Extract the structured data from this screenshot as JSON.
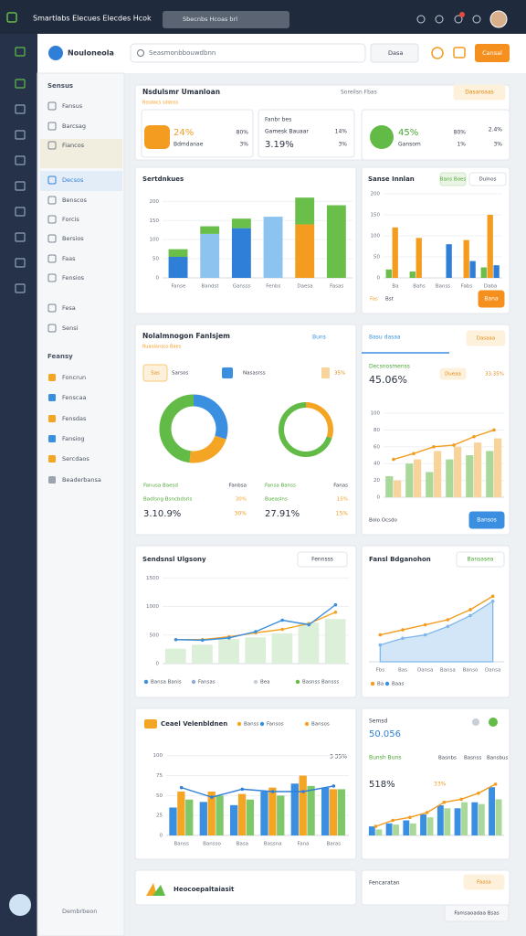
{
  "topbar": {
    "title": "Smartlabs Elecues Elecdes Hcok",
    "search": "Sbecnbs Hcoas brl"
  },
  "header": {
    "brand": "Nouloneola",
    "search": "Seasmonbbouwdbnn",
    "select": "Dasa",
    "button": "Cansal"
  },
  "sidebar": {
    "sections": [
      {
        "title": "Sensus",
        "items": [
          "Fansus",
          "Barcsag",
          "Fiancos",
          "Decsos",
          "Benscos",
          "Forcis",
          "Bersios",
          "Faas",
          "Fensios",
          "Fesa",
          "Sensi"
        ]
      },
      {
        "title": "Feansy",
        "items": [
          "Foncrun",
          "Fenscaa",
          "Fensdas",
          "Fansiog",
          "Sercdaos",
          "Beaderbansa"
        ]
      }
    ],
    "footer": "Dembrbeon"
  },
  "overview": {
    "title": "Nsdulsmr Umanloan",
    "subtitle": "Rssdacs sddnss",
    "link": "Soreilsn Fbas",
    "button": "Dasaroaas",
    "cards": [
      {
        "value": "24%",
        "label": "Bdmdanae",
        "side": [
          "80%",
          "3%"
        ]
      },
      {
        "top": "Fanbr bes",
        "label": "Gamesk Bauaar",
        "value": "3.19%",
        "side": [
          "14%",
          "3%"
        ]
      },
      {
        "value": "45%",
        "label": "Gansom",
        "side": [
          "80%",
          "1%"
        ],
        "extra": [
          "2.4%",
          "3%"
        ]
      }
    ]
  },
  "sales": {
    "title": "Sertdnkues",
    "chart": {
      "stacked": true,
      "ylim": [
        0,
        220
      ],
      "yticks": [
        0,
        50,
        100,
        150,
        200
      ],
      "categories": [
        "Fanse",
        "Bandst",
        "Gansss",
        "Fenbs",
        "Daesa",
        "Fasas"
      ],
      "series": [
        {
          "kind": "bar",
          "color": "#2f7fd8",
          "values": [
            55,
            null,
            130,
            null,
            null,
            null
          ]
        },
        {
          "kind": "bar",
          "color": "#8cc3ef",
          "values": [
            null,
            115,
            null,
            160,
            null,
            null
          ]
        },
        {
          "kind": "bar",
          "color": "#f39c1f",
          "values": [
            null,
            null,
            null,
            null,
            140,
            null
          ]
        },
        {
          "kind": "bar",
          "color": "#6abf4b",
          "values": [
            20,
            20,
            25,
            null,
            70,
            190
          ]
        }
      ]
    }
  },
  "region": {
    "title": "Sanse Innlan",
    "chips": [
      "Bans Boes",
      "Dulnos"
    ],
    "legend": [
      "Fas",
      "Bst"
    ],
    "button": "Bana",
    "chart": {
      "stacked": false,
      "ylim": [
        0,
        200
      ],
      "yticks": [
        0,
        50,
        100,
        150,
        200
      ],
      "categories": [
        "Ba",
        "Bahs",
        "Banss",
        "Fabs",
        "Daba"
      ],
      "series": [
        {
          "kind": "bar",
          "color": "#6abf4b",
          "values": [
            20,
            15,
            null,
            null,
            25
          ]
        },
        {
          "kind": "bar",
          "color": "#f39c1f",
          "values": [
            120,
            95,
            null,
            90,
            150
          ]
        },
        {
          "kind": "bar",
          "color": "#2f7fd8",
          "values": [
            null,
            null,
            80,
            40,
            30
          ]
        }
      ]
    }
  },
  "donuts": {
    "title": "Nolalmnogon Fanlsjem",
    "subtitle": "Ruaolanass Baes",
    "link": "Buns",
    "tabs": [
      "Sas",
      "Sarsos",
      "Nasasrss",
      "35%"
    ],
    "items": [
      {
        "values": [
          30,
          22,
          48
        ],
        "colors": [
          "#3b8fe0",
          "#f5a524",
          "#62bb47"
        ],
        "caption": "Fanusa Baesd",
        "caption_side": "Fanbsa",
        "metric": "Badlsng Bsncbdsrls",
        "metric_side": "30%",
        "value": "3.10.9%",
        "value_side": "30%"
      },
      {
        "values": [
          30,
          70
        ],
        "colors": [
          "#f5a524",
          "#62bb47"
        ],
        "caption": "Fansa Banss",
        "caption_side": "Fanas",
        "metric": "Bueaslns",
        "metric_side": "15%",
        "value": "27.91%",
        "value_side": "15%"
      }
    ]
  },
  "trend": {
    "tab": "Basu dasaa",
    "pill": "Dasaaa",
    "label": "Decsnosmenss",
    "value": "45.06%",
    "chips": [
      "Dueaa",
      "33.35%"
    ],
    "footer": "Bolo Ocsdo",
    "button": "Bansos",
    "chart": {
      "stacked": false,
      "ylim": [
        0,
        100
      ],
      "yticks": [
        0,
        20,
        40,
        60,
        80,
        100
      ],
      "dots": true,
      "series": [
        {
          "kind": "bar",
          "color": "#a9d89a",
          "values": [
            25,
            40,
            30,
            45,
            50,
            55
          ]
        },
        {
          "kind": "bar",
          "color": "#f8d49a",
          "values": [
            20,
            45,
            55,
            60,
            65,
            70
          ]
        },
        {
          "kind": "line",
          "color": "#f39c1f",
          "values": [
            45,
            52,
            60,
            62,
            72,
            80
          ]
        }
      ]
    }
  },
  "linechart": {
    "title": "Sendsnsl Ulgsony",
    "button": "Fennsss",
    "legend": [
      {
        "label": "Bansa Banis",
        "color": "#3b8fe0"
      },
      {
        "label": "Fansas",
        "color": "#8fa9d6"
      },
      {
        "label": "Bea",
        "color": "#c9ced6"
      },
      {
        "label": "Basnss Bansss",
        "color": "#62bb47"
      }
    ],
    "chart": {
      "stacked": false,
      "ylim": [
        0,
        1600
      ],
      "yticks": [
        0,
        500,
        1000,
        1500
      ],
      "dots": true,
      "series": [
        {
          "kind": "bar",
          "color": "#dcefd8",
          "values": [
            260,
            330,
            430,
            460,
            530,
            720,
            780
          ]
        },
        {
          "kind": "line",
          "color": "#f5a524",
          "values": [
            420,
            420,
            470,
            540,
            600,
            700,
            900
          ]
        },
        {
          "kind": "line",
          "color": "#3b8fe0",
          "values": [
            420,
            410,
            450,
            560,
            760,
            680,
            1030
          ]
        }
      ]
    }
  },
  "areachart": {
    "title": "Fansl Bdganohon",
    "button": "Bansasea",
    "legend": [
      {
        "label": "Ba",
        "color": "#f39c1f"
      },
      {
        "label": "Baas",
        "color": "#3b8fe0"
      }
    ],
    "chart": {
      "stacked": false,
      "ylim": [
        0,
        100
      ],
      "dots": true,
      "categories": [
        "Fbs",
        "Bas",
        "Dansa",
        "Bansa",
        "Banso",
        "Dansa"
      ],
      "series": [
        {
          "kind": "area",
          "color": "#7fb6ec",
          "values": [
            20,
            28,
            32,
            42,
            55,
            72
          ]
        },
        {
          "kind": "line",
          "color": "#f39c1f",
          "values": [
            32,
            38,
            44,
            50,
            62,
            78
          ]
        }
      ]
    }
  },
  "combo": {
    "title": "Ceael Velenbldnen",
    "note": "3 35%",
    "legend": [
      {
        "label": "Banss",
        "color": "#f5a524"
      },
      {
        "label": "Fansos",
        "color": "#3b8fe0"
      },
      {
        "label": "Bansos",
        "color": "#f5a524"
      }
    ],
    "chart": {
      "stacked": false,
      "ylim": [
        0,
        110
      ],
      "yticks": [
        0,
        25,
        50,
        75,
        100
      ],
      "dots": true,
      "categories": [
        "Banss",
        "Bansso",
        "Basa",
        "Bassna",
        "Fana",
        "Baras"
      ],
      "series": [
        {
          "kind": "bar",
          "color": "#3b8fe0",
          "values": [
            35,
            42,
            38,
            55,
            65,
            60
          ]
        },
        {
          "kind": "bar",
          "color": "#f5a524",
          "values": [
            55,
            55,
            52,
            60,
            75,
            58
          ]
        },
        {
          "kind": "bar",
          "color": "#7fc86a",
          "values": [
            45,
            50,
            45,
            50,
            62,
            58
          ]
        },
        {
          "kind": "line",
          "color": "#2f7fd8",
          "values": [
            60,
            48,
            58,
            55,
            55,
            62
          ]
        }
      ]
    }
  },
  "summary": {
    "title": "Semsd",
    "value": "50.056",
    "chips": [
      "Basnbs",
      "Basnss",
      "Bansbus"
    ],
    "label": "Bunsh Buns",
    "value2": "518%",
    "pct": "33%",
    "chart": {
      "stacked": false,
      "ylim": [
        0,
        100
      ],
      "dots": true,
      "series": [
        {
          "kind": "bar",
          "color": "#3b8fe0",
          "values": [
            15,
            20,
            25,
            35,
            50,
            45,
            55,
            80
          ]
        },
        {
          "kind": "bar",
          "color": "#a9d89a",
          "values": [
            10,
            18,
            20,
            30,
            45,
            55,
            52,
            60
          ]
        },
        {
          "kind": "line",
          "color": "#f39c1f",
          "values": [
            15,
            25,
            30,
            38,
            55,
            60,
            70,
            85
          ]
        }
      ]
    }
  },
  "footer": {
    "title": "Heocoepaltaiasit",
    "right": "Fencaratan",
    "pill": "Faasa",
    "button": "Famsaoadaa Bsas"
  }
}
